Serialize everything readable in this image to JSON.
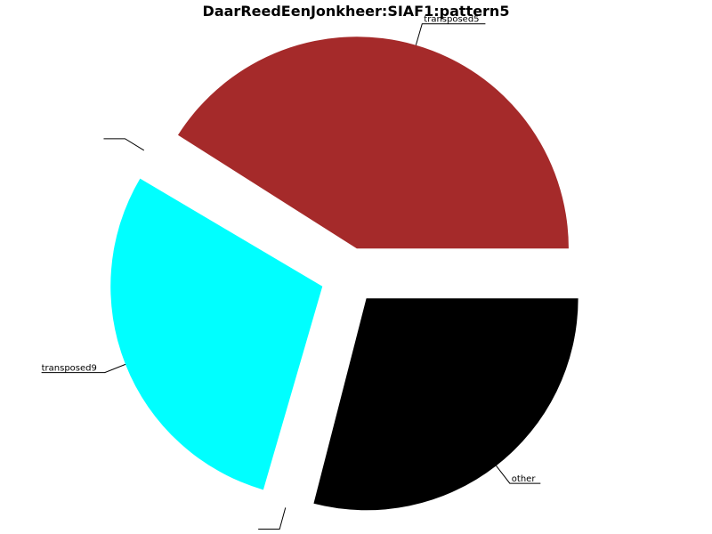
{
  "chart_data": {
    "type": "pie",
    "title": "DaarReedEenJonkheer:SIAF1:pattern5",
    "slices": [
      {
        "label": "other",
        "value": 29.0,
        "color": "#000000"
      },
      {
        "label": "",
        "value": 0.5,
        "color": "#ffffff"
      },
      {
        "label": "transposed9",
        "value": 29.0,
        "color": "#00ffff"
      },
      {
        "label": "",
        "value": 0.5,
        "color": "#ffffff"
      },
      {
        "label": "transposed5",
        "value": 41.0,
        "color": "#a52a2a"
      }
    ],
    "exploded": true,
    "legend": "none"
  }
}
